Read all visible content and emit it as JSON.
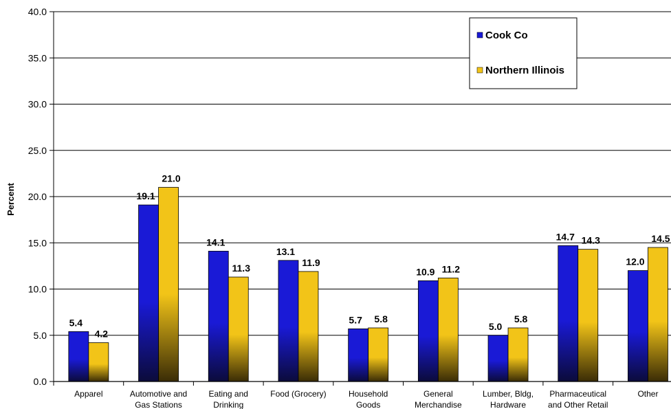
{
  "chart_data": {
    "type": "bar",
    "title": "",
    "xlabel": "",
    "ylabel": "Percent",
    "ylim": [
      0,
      40
    ],
    "yticks": [
      "0.0",
      "5.0",
      "10.0",
      "15.0",
      "20.0",
      "25.0",
      "30.0",
      "35.0",
      "40.0"
    ],
    "grid": true,
    "legend_position": "top-right",
    "categories": [
      [
        "Apparel"
      ],
      [
        "Automotive and",
        "Gas Stations"
      ],
      [
        "Eating and",
        "Drinking"
      ],
      [
        "Food (Grocery)"
      ],
      [
        "Household",
        "Goods"
      ],
      [
        "General",
        "Merchandise"
      ],
      [
        "Lumber, Bldg,",
        "Hardware"
      ],
      [
        "Pharmaceutical",
        "and Other Retail"
      ],
      [
        "Other"
      ]
    ],
    "series": [
      {
        "name": "Cook Co",
        "color": "#1a1ad6",
        "gradient_bottom": "#0b0b3a",
        "values": [
          5.4,
          19.1,
          14.1,
          13.1,
          5.7,
          10.9,
          5.0,
          14.7,
          12.0
        ],
        "labels": [
          "5.4",
          "19.1",
          "14.1",
          "13.1",
          "5.7",
          "10.9",
          "5.0",
          "14.7",
          "12.0"
        ]
      },
      {
        "name": "Northern Illinois",
        "color": "#f2c418",
        "gradient_bottom": "#3a2c06",
        "values": [
          4.2,
          21.0,
          11.3,
          11.9,
          5.8,
          11.2,
          5.8,
          14.3,
          14.5
        ],
        "labels": [
          "4.2",
          "21.0",
          "11.3",
          "11.9",
          "5.8",
          "11.2",
          "5.8",
          "14.3",
          "14.5"
        ]
      }
    ]
  }
}
